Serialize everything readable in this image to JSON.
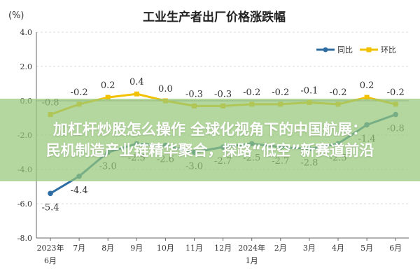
{
  "chart_data": {
    "type": "line",
    "title": "工业生产者出厂价格涨跌幅",
    "ylabel": "(%)",
    "ylim": [
      -8.0,
      4.0
    ],
    "yticks": [
      "4.0",
      "2.0",
      "0.0",
      "-2.0",
      "-4.0",
      "-6.0",
      "-8.0"
    ],
    "ytick_values": [
      4,
      2,
      0,
      -2,
      -4,
      -6,
      -8
    ],
    "categories": [
      "2023年6月",
      "7月",
      "8月",
      "9月",
      "10月",
      "11月",
      "12月",
      "2024年1月",
      "2月",
      "3月",
      "4月",
      "5月",
      "6月"
    ],
    "category_lines": [
      [
        "2023年",
        "6月"
      ],
      [
        "7月"
      ],
      [
        "8月"
      ],
      [
        "9月"
      ],
      [
        "10月"
      ],
      [
        "11月"
      ],
      [
        "12月"
      ],
      [
        "2024年",
        "1月"
      ],
      [
        "2月"
      ],
      [
        "3月"
      ],
      [
        "4月"
      ],
      [
        "5月"
      ],
      [
        "6月"
      ]
    ],
    "series": [
      {
        "name": "同比",
        "color": "#2e6da4",
        "values": [
          -5.4,
          -4.4,
          -3.0,
          -2.5,
          -2.6,
          -3.0,
          -2.7,
          -2.5,
          -2.7,
          -2.8,
          -2.5,
          -1.4,
          -0.8
        ],
        "labels": [
          "-5.4",
          "-4.4",
          "-3.0",
          "-2.5",
          "-2.6",
          "-3.0",
          "-2.7",
          "-2.5",
          "-2.7",
          "-2.8",
          "-2.5",
          "-1.4",
          "-0.8"
        ]
      },
      {
        "name": "环比",
        "color": "#f2c200",
        "values": [
          -0.8,
          -0.2,
          0.2,
          0.4,
          0.0,
          -0.3,
          -0.3,
          -0.2,
          -0.2,
          -0.1,
          -0.2,
          0.2,
          -0.2
        ],
        "labels": [
          "-0.8",
          "-0.2",
          "0.2",
          "0.4",
          "0.0",
          "-0.3",
          "-0.3",
          "-0.2",
          "-0.2",
          "-0.1",
          "-0.2",
          "0.2",
          "-0.2"
        ]
      }
    ],
    "grid": true,
    "legend": "top-right"
  },
  "overlay": {
    "line1": "加杠杆炒股怎么操作 全球化视角下的中国航展：",
    "line2": "民机制造产业链精华聚合，探路“低空”新赛道前沿"
  },
  "colors": {
    "banner": "#8cc878",
    "grid": "#cfcfcf",
    "axis": "#666666",
    "text": "#333333"
  }
}
